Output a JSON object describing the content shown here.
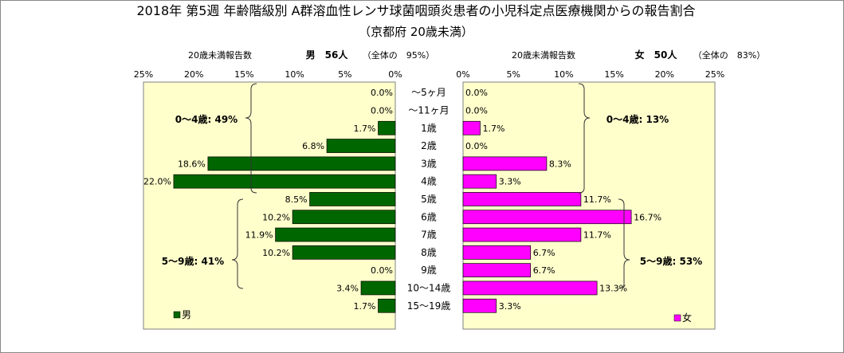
{
  "title": "2018年 第5週 年齢階級別 A群溶血性レンサ球菌咽頭炎患者の小児科定点医療機関からの報告割合",
  "subtitle": "（京都府 20歳未満）",
  "left_header": {
    "caption": "20歳未満報告数",
    "summary": "男　56人",
    "share": "（全体の　95%）"
  },
  "right_header": {
    "caption": "20歳未満報告数",
    "summary": "女　50人",
    "share": "（全体の　83%）"
  },
  "group_labels": {
    "male_0_4": "0～4歳: 49%",
    "male_5_9": "5～9歳: 41%",
    "female_0_4": "0～4歳: 13%",
    "female_5_9": "5～9歳: 53%"
  },
  "colors": {
    "male": "#006600",
    "female": "#ff00ff",
    "plot_bg": "#ffffcc"
  },
  "chart_data": {
    "type": "bar",
    "orientation": "horizontal",
    "layout": "population-pyramid",
    "title": "2018年 第5週 年齢階級別 A群溶血性レンサ球菌咽頭炎患者の小児科定点医療機関からの報告割合",
    "categories": [
      "～5ヶ月",
      "～11ヶ月",
      "1歳",
      "2歳",
      "3歳",
      "4歳",
      "5歳",
      "6歳",
      "7歳",
      "8歳",
      "9歳",
      "10～14歳",
      "15～19歳"
    ],
    "series": [
      {
        "name": "男",
        "values": [
          0.0,
          0.0,
          1.7,
          6.8,
          18.6,
          22.0,
          8.5,
          10.2,
          11.9,
          10.2,
          0.0,
          3.4,
          1.7
        ],
        "labels": [
          "0.0%",
          "0.0%",
          "1.7%",
          "6.8%",
          "18.6%",
          "22.0%",
          "8.5%",
          "10.2%",
          "11.9%",
          "10.2%",
          "0.0%",
          "3.4%",
          "1.7%"
        ]
      },
      {
        "name": "女",
        "values": [
          0.0,
          0.0,
          1.7,
          0.0,
          8.3,
          3.3,
          11.7,
          16.7,
          11.7,
          6.7,
          6.7,
          13.3,
          3.3
        ],
        "labels": [
          "0.0%",
          "0.0%",
          "1.7%",
          "0.0%",
          "8.3%",
          "3.3%",
          "11.7%",
          "16.7%",
          "11.7%",
          "6.7%",
          "6.7%",
          "13.3%",
          "3.3%"
        ]
      }
    ],
    "xlim": [
      0,
      25
    ],
    "left_ticks": [
      "25%",
      "20%",
      "15%",
      "10%",
      "5%",
      "0%"
    ],
    "right_ticks": [
      "0%",
      "5%",
      "10%",
      "15%",
      "20%",
      "25%"
    ],
    "grid": false,
    "legend": [
      "男",
      "女"
    ]
  }
}
